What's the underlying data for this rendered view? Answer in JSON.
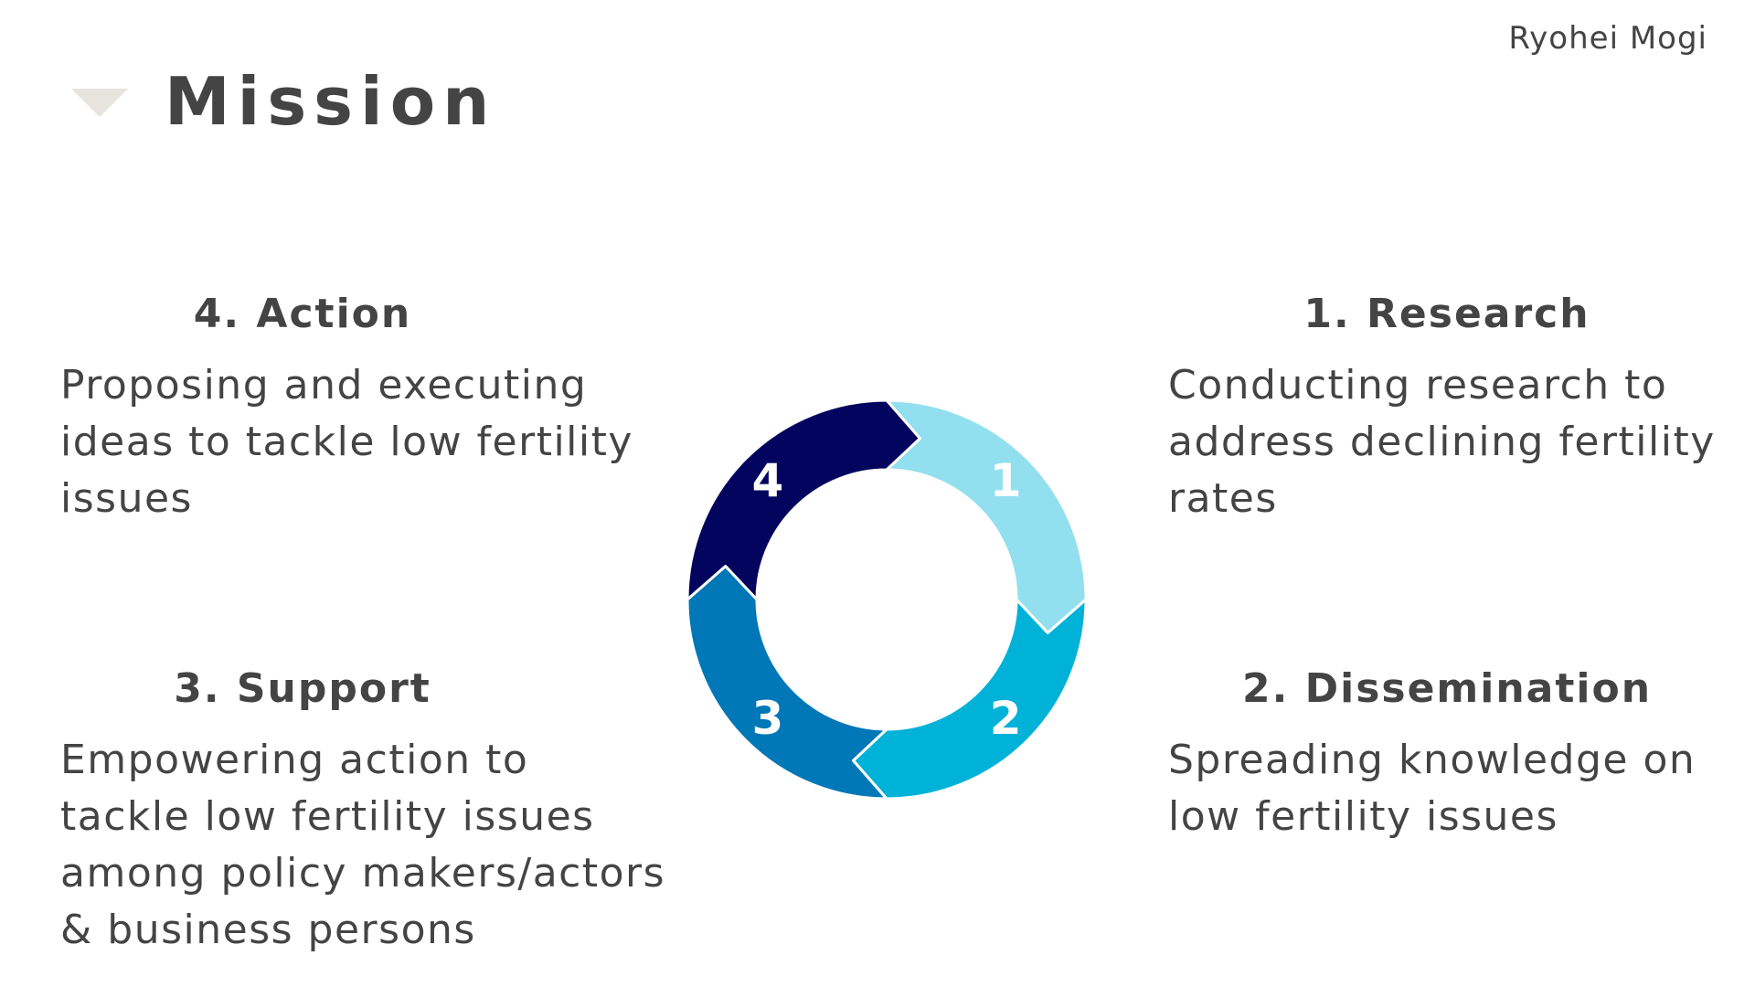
{
  "header": {
    "title": "Mission",
    "author": "Ryohei Mogi"
  },
  "cycle": {
    "steps": [
      {
        "number": "1",
        "heading": "1. Research",
        "lines": [
          "Conducting research to",
          "address declining fertility",
          "rates"
        ],
        "color": "#92dfef"
      },
      {
        "number": "2",
        "heading": "2. Dissemination",
        "lines": [
          "Spreading knowledge on",
          "low fertility issues"
        ],
        "color": "#00b2d7"
      },
      {
        "number": "3",
        "heading": "3. Support",
        "lines": [
          "Empowering action to",
          "tackle low fertility issues",
          "among policy makers/actors",
          "& business persons"
        ],
        "color": "#0077b6"
      },
      {
        "number": "4",
        "heading": "4. Action",
        "lines": [
          "Proposing and executing",
          "ideas to tackle low fertility",
          "issues"
        ],
        "color": "#03045e"
      }
    ]
  },
  "colors": {
    "text": "#444444",
    "title_marker": "#e7e4de"
  }
}
